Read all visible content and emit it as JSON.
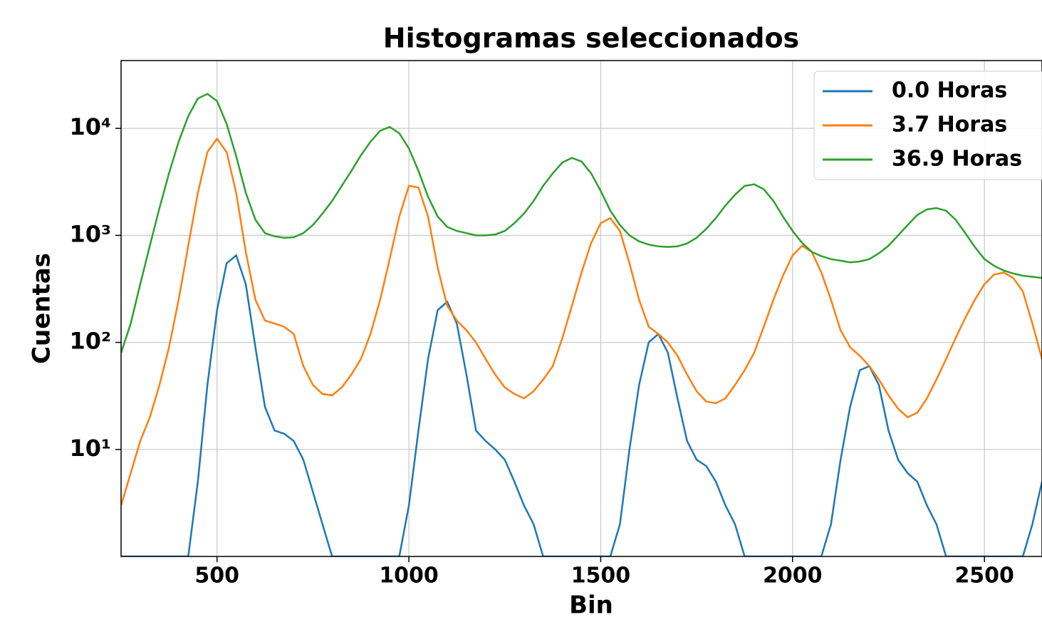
{
  "chart_data": {
    "type": "line",
    "title": "Histogramas seleccionados",
    "xlabel": "Bin",
    "ylabel": "Cuentas",
    "log_y": true,
    "grid": true,
    "legend": "upper right",
    "xlim": [
      250,
      2650
    ],
    "ylim": [
      1,
      43000
    ],
    "xticks": [
      500,
      1000,
      1500,
      2000,
      2500
    ],
    "yticks": [
      {
        "value": 10,
        "label": "10¹"
      },
      {
        "value": 100,
        "label": "10²"
      },
      {
        "value": 1000,
        "label": "10³"
      },
      {
        "value": 10000,
        "label": "10⁴"
      }
    ],
    "x": [
      250,
      275,
      300,
      325,
      350,
      375,
      400,
      425,
      450,
      475,
      500,
      525,
      550,
      575,
      600,
      625,
      650,
      675,
      700,
      725,
      750,
      775,
      800,
      825,
      850,
      875,
      900,
      925,
      950,
      975,
      1000,
      1025,
      1050,
      1075,
      1100,
      1125,
      1150,
      1175,
      1200,
      1225,
      1250,
      1275,
      1300,
      1325,
      1350,
      1375,
      1400,
      1425,
      1450,
      1475,
      1500,
      1525,
      1550,
      1575,
      1600,
      1625,
      1650,
      1675,
      1700,
      1725,
      1750,
      1775,
      1800,
      1825,
      1850,
      1875,
      1900,
      1925,
      1950,
      1975,
      2000,
      2025,
      2050,
      2075,
      2100,
      2125,
      2150,
      2175,
      2200,
      2225,
      2250,
      2275,
      2300,
      2325,
      2350,
      2375,
      2400,
      2425,
      2450,
      2475,
      2500,
      2525,
      2550,
      2575,
      2600,
      2625,
      2650
    ],
    "series": [
      {
        "name": "0.0 Horas",
        "color": "#1f77b4",
        "values": [
          1,
          1,
          1,
          1,
          1,
          1,
          1,
          1,
          5,
          40,
          200,
          550,
          650,
          350,
          90,
          25,
          15,
          14,
          12,
          8,
          4,
          2,
          1,
          1,
          1,
          1,
          1,
          1,
          1,
          1,
          3,
          15,
          70,
          200,
          240,
          150,
          50,
          15,
          12,
          10,
          8,
          5,
          3,
          2,
          1,
          1,
          1,
          1,
          1,
          1,
          1,
          1,
          2,
          10,
          40,
          100,
          120,
          80,
          30,
          12,
          8,
          7,
          5,
          3,
          2,
          1,
          1,
          1,
          1,
          1,
          1,
          1,
          1,
          1,
          2,
          8,
          25,
          55,
          60,
          40,
          15,
          8,
          6,
          5,
          3,
          2,
          1,
          1,
          1,
          1,
          1,
          1,
          1,
          1,
          1,
          2,
          5
        ]
      },
      {
        "name": "3.7 Horas",
        "color": "#ff7f0e",
        "values": [
          3,
          6,
          12,
          20,
          40,
          90,
          250,
          800,
          2500,
          6000,
          8000,
          6000,
          2500,
          700,
          250,
          160,
          150,
          140,
          120,
          60,
          40,
          33,
          32,
          38,
          50,
          70,
          120,
          250,
          600,
          1500,
          2900,
          2800,
          1500,
          500,
          220,
          160,
          130,
          100,
          70,
          50,
          38,
          33,
          30,
          35,
          45,
          60,
          110,
          220,
          450,
          850,
          1300,
          1450,
          1100,
          550,
          250,
          140,
          120,
          100,
          75,
          50,
          35,
          28,
          27,
          30,
          40,
          55,
          80,
          140,
          250,
          420,
          650,
          800,
          700,
          450,
          250,
          130,
          90,
          75,
          60,
          45,
          32,
          24,
          20,
          22,
          30,
          45,
          70,
          110,
          170,
          250,
          350,
          430,
          450,
          400,
          300,
          150,
          70
        ]
      },
      {
        "name": "36.9 Horas",
        "color": "#2ca02c",
        "values": [
          80,
          150,
          350,
          800,
          1800,
          3800,
          7500,
          13000,
          19000,
          21000,
          18000,
          11000,
          5500,
          2500,
          1400,
          1050,
          980,
          950,
          960,
          1050,
          1250,
          1600,
          2100,
          2900,
          4000,
          5600,
          7500,
          9500,
          10300,
          9000,
          6500,
          4000,
          2300,
          1500,
          1200,
          1100,
          1050,
          1000,
          1000,
          1020,
          1100,
          1300,
          1600,
          2100,
          2900,
          3800,
          4800,
          5300,
          4900,
          3800,
          2600,
          1700,
          1250,
          1000,
          880,
          820,
          790,
          780,
          790,
          840,
          950,
          1150,
          1450,
          1900,
          2400,
          2900,
          3000,
          2700,
          2100,
          1500,
          1100,
          850,
          700,
          640,
          600,
          580,
          560,
          570,
          600,
          680,
          800,
          1000,
          1250,
          1550,
          1750,
          1800,
          1700,
          1400,
          1050,
          780,
          600,
          520,
          470,
          440,
          420,
          410,
          400
        ]
      }
    ]
  }
}
